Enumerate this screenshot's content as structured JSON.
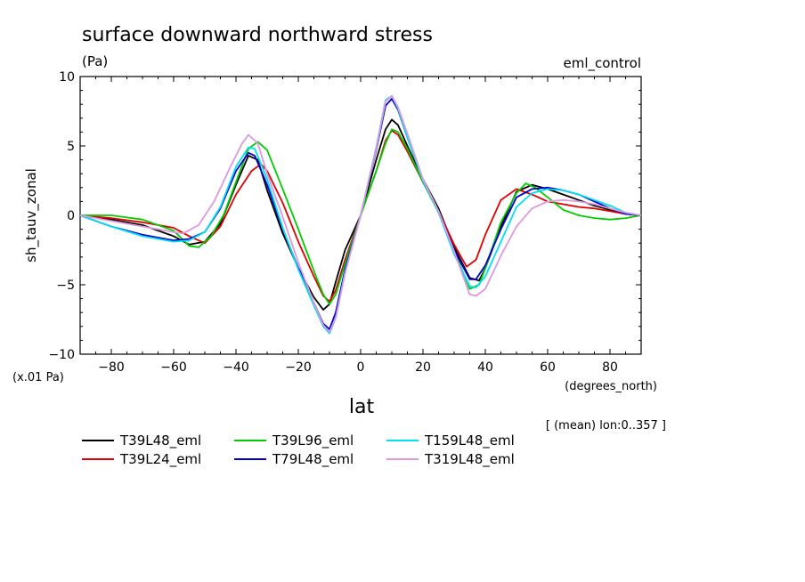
{
  "chart_data": {
    "type": "line",
    "title": "surface downward northward stress",
    "units_label": "(Pa)",
    "experiment_label": "eml_control",
    "ylabel": "sh_tauv_zonal",
    "xlabel": "lat",
    "x_units_label": "(degrees_north)",
    "y_scale_label": "(x.01 Pa)",
    "note": "[ (mean) lon:0..357 ]",
    "xlim": [
      -90,
      90
    ],
    "ylim": [
      -10,
      10
    ],
    "xticks": [
      -80,
      -60,
      -40,
      -20,
      0,
      20,
      40,
      60,
      80
    ],
    "yticks": [
      -10,
      -5,
      0,
      5,
      10
    ],
    "xtick_labels": [
      "−80",
      "−60",
      "−40",
      "−20",
      "0",
      "20",
      "40",
      "60",
      "80"
    ],
    "ytick_labels": [
      "−10",
      "−5",
      "0",
      "5",
      "10"
    ],
    "series": [
      {
        "name": "T39L48_eml",
        "color": "#000000",
        "x": [
          -90,
          -80,
          -70,
          -60,
          -55,
          -50,
          -45,
          -40,
          -36,
          -33,
          -30,
          -25,
          -20,
          -15,
          -12,
          -10,
          -8,
          -5,
          0,
          5,
          8,
          10,
          12,
          15,
          20,
          25,
          30,
          35,
          38,
          40,
          45,
          50,
          55,
          60,
          65,
          70,
          75,
          80,
          85,
          90
        ],
        "y": [
          0,
          -0.3,
          -0.7,
          -1.5,
          -2.1,
          -1.9,
          -0.6,
          2.2,
          4.3,
          4.0,
          1.8,
          -1.3,
          -3.8,
          -5.9,
          -6.8,
          -6.4,
          -4.8,
          -2.5,
          0,
          4.0,
          6.2,
          6.9,
          6.5,
          5.0,
          2.6,
          0.5,
          -2.3,
          -4.5,
          -4.7,
          -3.8,
          -0.8,
          1.7,
          2.2,
          1.9,
          1.5,
          1.1,
          0.7,
          0.4,
          0.1,
          0
        ]
      },
      {
        "name": "T39L24_eml",
        "color": "#e00000",
        "x": [
          -90,
          -80,
          -70,
          -60,
          -55,
          -50,
          -45,
          -40,
          -35,
          -32,
          -30,
          -25,
          -20,
          -15,
          -12,
          -10,
          -8,
          -5,
          0,
          5,
          8,
          10,
          12,
          15,
          20,
          25,
          30,
          34,
          37,
          40,
          45,
          50,
          55,
          60,
          65,
          70,
          75,
          80,
          85,
          90
        ],
        "y": [
          0,
          -0.2,
          -0.5,
          -0.9,
          -1.5,
          -2.0,
          -0.8,
          1.5,
          3.2,
          3.7,
          3.2,
          0.9,
          -1.9,
          -4.4,
          -5.8,
          -6.2,
          -5.4,
          -3.2,
          0,
          3.2,
          5.4,
          6.1,
          5.8,
          4.6,
          2.4,
          0.3,
          -2.1,
          -3.7,
          -3.2,
          -1.4,
          1.1,
          1.9,
          1.5,
          1.0,
          0.8,
          0.6,
          0.5,
          0.3,
          0.1,
          0
        ]
      },
      {
        "name": "T39L96_eml",
        "color": "#00cc00",
        "x": [
          -90,
          -80,
          -70,
          -60,
          -55,
          -52,
          -48,
          -44,
          -40,
          -36,
          -33,
          -30,
          -25,
          -20,
          -15,
          -12,
          -10,
          -8,
          -5,
          0,
          5,
          8,
          10,
          12,
          15,
          20,
          25,
          30,
          35,
          38,
          40,
          45,
          50,
          53,
          56,
          60,
          65,
          70,
          75,
          80,
          85,
          90
        ],
        "y": [
          0,
          0,
          -0.3,
          -1.1,
          -2.2,
          -2.3,
          -1.5,
          0,
          2.4,
          4.8,
          5.3,
          4.7,
          1.9,
          -1.0,
          -4.0,
          -5.7,
          -6.4,
          -5.7,
          -3.5,
          0,
          3.2,
          5.2,
          6.2,
          6.0,
          4.8,
          2.4,
          0.2,
          -2.5,
          -5.3,
          -5.0,
          -3.8,
          -0.5,
          1.6,
          2.3,
          2.0,
          1.3,
          0.4,
          0,
          -0.2,
          -0.3,
          -0.2,
          0
        ]
      },
      {
        "name": "T79L48_eml",
        "color": "#0000cc",
        "x": [
          -90,
          -80,
          -70,
          -60,
          -55,
          -50,
          -45,
          -40,
          -36,
          -34,
          -30,
          -25,
          -20,
          -15,
          -12,
          -10,
          -8,
          -5,
          0,
          5,
          8,
          10,
          12,
          15,
          20,
          25,
          30,
          35,
          37,
          40,
          45,
          50,
          55,
          60,
          65,
          70,
          75,
          80,
          85,
          90
        ],
        "y": [
          0,
          -0.8,
          -1.4,
          -1.8,
          -1.7,
          -1.2,
          0.5,
          3.2,
          4.5,
          4.3,
          2.2,
          -1.0,
          -3.8,
          -6.3,
          -7.8,
          -8.2,
          -7.0,
          -3.9,
          0,
          4.7,
          7.9,
          8.4,
          7.6,
          5.6,
          2.5,
          0.3,
          -2.5,
          -4.6,
          -4.6,
          -3.6,
          -1.0,
          1.3,
          1.9,
          2.0,
          1.8,
          1.5,
          1.0,
          0.5,
          0.1,
          0
        ]
      },
      {
        "name": "T159L48_eml",
        "color": "#00e0f0",
        "x": [
          -90,
          -80,
          -70,
          -60,
          -55,
          -50,
          -45,
          -40,
          -36,
          -34,
          -30,
          -25,
          -20,
          -15,
          -12,
          -10,
          -8,
          -5,
          0,
          5,
          8,
          10,
          12,
          15,
          20,
          25,
          30,
          35,
          37,
          40,
          45,
          50,
          55,
          60,
          65,
          70,
          75,
          80,
          85,
          90
        ],
        "y": [
          0,
          -0.8,
          -1.5,
          -1.9,
          -1.8,
          -1.2,
          0.6,
          3.5,
          4.9,
          4.8,
          2.6,
          -0.9,
          -3.9,
          -6.5,
          -8.0,
          -8.5,
          -7.4,
          -4.1,
          0,
          4.9,
          8.3,
          8.6,
          7.7,
          5.6,
          2.5,
          0.2,
          -2.8,
          -5.1,
          -5.2,
          -4.4,
          -1.9,
          0.6,
          1.6,
          1.9,
          1.8,
          1.5,
          1.1,
          0.7,
          0.2,
          0
        ]
      },
      {
        "name": "T319L48_eml",
        "color": "#dd99dd",
        "x": [
          -90,
          -80,
          -70,
          -60,
          -57,
          -52,
          -47,
          -42,
          -38,
          -36,
          -33,
          -30,
          -25,
          -20,
          -15,
          -12,
          -10,
          -8,
          -5,
          0,
          5,
          8,
          10,
          12,
          15,
          20,
          25,
          30,
          35,
          37,
          40,
          45,
          50,
          55,
          60,
          65,
          70,
          75,
          80,
          85,
          90
        ],
        "y": [
          0,
          -0.4,
          -0.8,
          -1.2,
          -1.3,
          -0.7,
          1.0,
          3.4,
          5.2,
          5.8,
          5.2,
          3.0,
          -0.1,
          -3.4,
          -6.3,
          -7.9,
          -8.4,
          -7.4,
          -4.2,
          0,
          4.8,
          8.2,
          8.6,
          7.8,
          5.9,
          2.6,
          0.3,
          -2.6,
          -5.7,
          -5.8,
          -5.3,
          -2.9,
          -0.8,
          0.5,
          1.0,
          1.1,
          1.0,
          0.8,
          0.5,
          0.2,
          0
        ]
      }
    ]
  }
}
